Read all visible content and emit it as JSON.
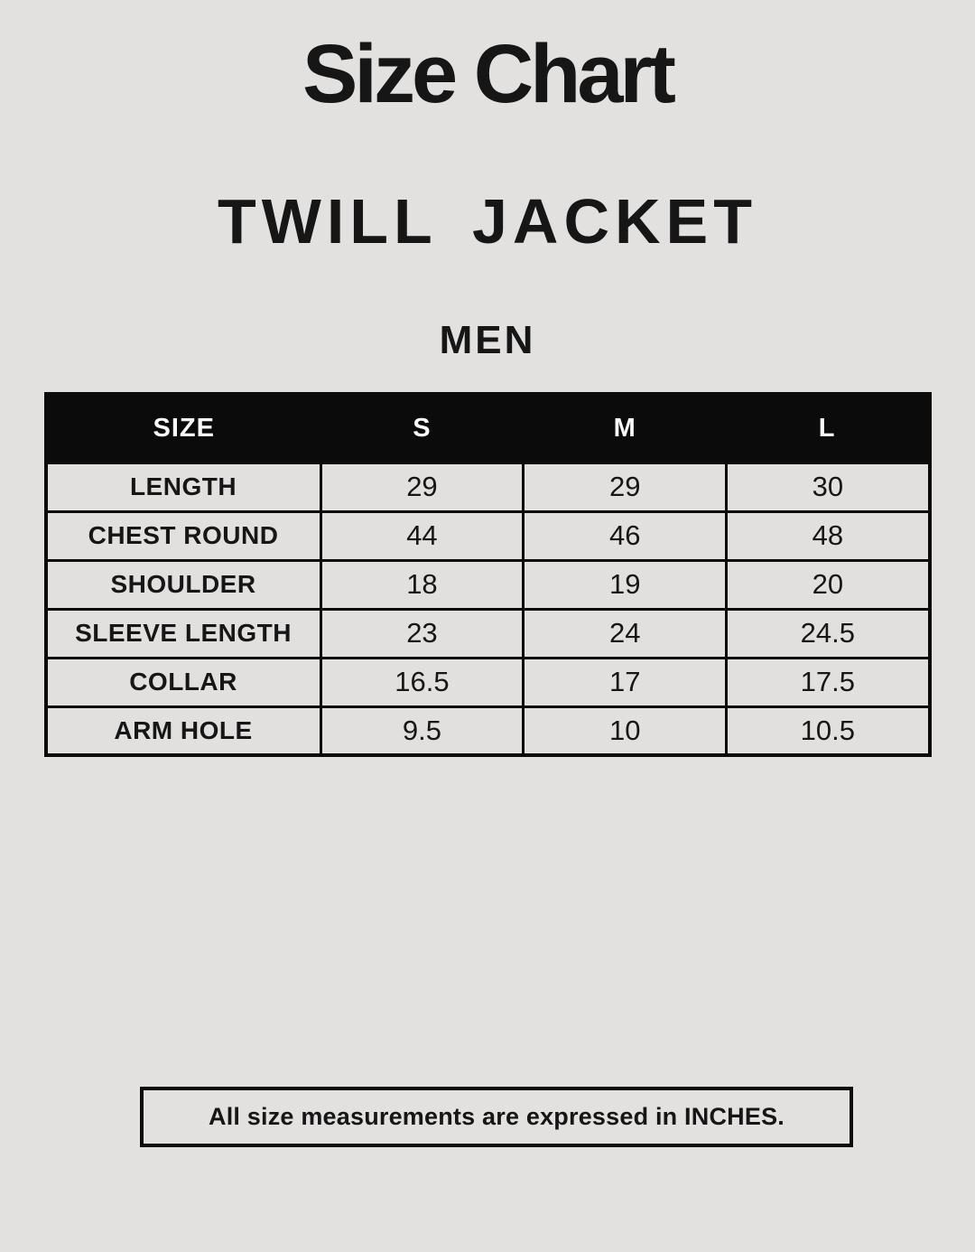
{
  "chart_data": {
    "type": "table",
    "title": "Size Chart",
    "subtitle": "TWILL JACKET",
    "group": "MEN",
    "unit_note": "All size measurements are expressed in INCHES.",
    "columns": [
      "SIZE",
      "S",
      "M",
      "L"
    ],
    "rows": [
      [
        "LENGTH",
        "29",
        "29",
        "30"
      ],
      [
        "CHEST ROUND",
        "44",
        "46",
        "48"
      ],
      [
        "SHOULDER",
        "18",
        "19",
        "20"
      ],
      [
        "SLEEVE LENGTH",
        "23",
        "24",
        "24.5"
      ],
      [
        "COLLAR",
        "16.5",
        "17",
        "17.5"
      ],
      [
        "ARM HOLE",
        "9.5",
        "10",
        "10.5"
      ]
    ]
  },
  "colors": {
    "background": "#e2e1e0",
    "cell_bg": "#e1e0df",
    "border": "#0b0b0b",
    "header_bg": "#0b0b0b",
    "header_text": "#fafafa",
    "text": "#161616"
  }
}
